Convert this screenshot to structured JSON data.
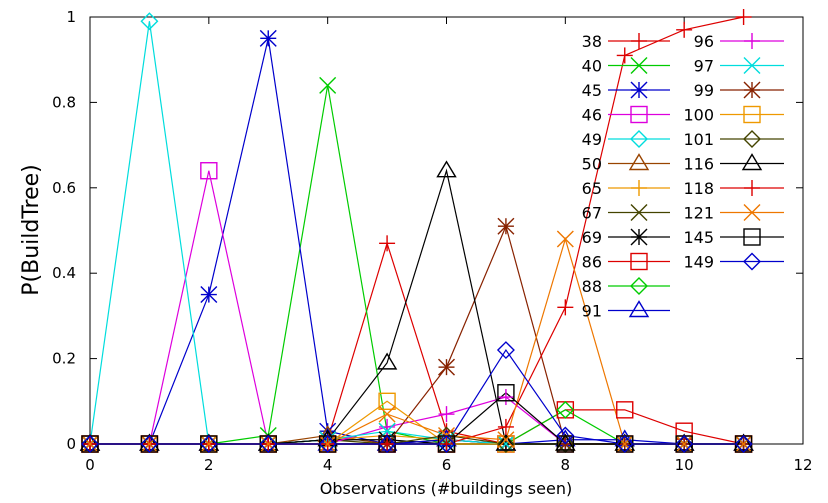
{
  "chart_data": {
    "type": "line",
    "title": "",
    "xlabel": "Observations (#buildings seen)",
    "ylabel": "P(BuildTree)",
    "xlim": [
      0,
      12
    ],
    "ylim": [
      0,
      1
    ],
    "xticks": [
      "0",
      "2",
      "4",
      "6",
      "8",
      "10",
      "12"
    ],
    "yticks": [
      "0",
      "0.2",
      "0.4",
      "0.6",
      "0.8",
      "1"
    ],
    "grid": false,
    "legend_position": "top-right",
    "series": [
      {
        "name": "38",
        "color": "#dd0000",
        "marker": "plus",
        "x": [
          0,
          1,
          2,
          3,
          4,
          5,
          6,
          7,
          8,
          9,
          10,
          11
        ],
        "y": [
          0,
          0,
          0,
          0,
          0.01,
          0.47,
          0.03,
          0,
          0,
          0,
          0,
          0
        ]
      },
      {
        "name": "40",
        "color": "#00cc00",
        "marker": "x",
        "x": [
          0,
          1,
          2,
          3,
          4,
          5,
          6,
          7,
          8,
          9,
          10,
          11
        ],
        "y": [
          0,
          0,
          0,
          0.02,
          0.84,
          0.03,
          0,
          0,
          0,
          0,
          0,
          0
        ]
      },
      {
        "name": "45",
        "color": "#0000cc",
        "marker": "star",
        "x": [
          0,
          1,
          2,
          3,
          4,
          5,
          6,
          7,
          8,
          9,
          10,
          11
        ],
        "y": [
          0,
          0,
          0.35,
          0.95,
          0.03,
          0,
          0,
          0,
          0,
          0,
          0,
          0
        ]
      },
      {
        "name": "46",
        "color": "#dd00dd",
        "marker": "square",
        "x": [
          0,
          1,
          2,
          3,
          4,
          5,
          6,
          7,
          8,
          9,
          10,
          11
        ],
        "y": [
          0,
          0,
          0.64,
          0,
          0,
          0,
          0,
          0,
          0,
          0,
          0,
          0
        ]
      },
      {
        "name": "49",
        "color": "#00dddd",
        "marker": "diamond",
        "x": [
          0,
          1,
          2,
          3,
          4,
          5,
          6,
          7,
          8,
          9,
          10,
          11
        ],
        "y": [
          0,
          0.99,
          0,
          0,
          0,
          0,
          0,
          0,
          0,
          0,
          0,
          0
        ]
      },
      {
        "name": "50",
        "color": "#994400",
        "marker": "triangle",
        "x": [
          0,
          1,
          2,
          3,
          4,
          5,
          6,
          7,
          8,
          9,
          10,
          11
        ],
        "y": [
          0,
          0,
          0,
          0,
          0.02,
          0,
          0.01,
          0,
          0,
          0,
          0,
          0
        ]
      },
      {
        "name": "65",
        "color": "#ee9900",
        "marker": "plus",
        "x": [
          0,
          1,
          2,
          3,
          4,
          5,
          6,
          7,
          8,
          9,
          10,
          11
        ],
        "y": [
          0,
          0,
          0,
          0,
          0.01,
          0.02,
          0.01,
          0,
          0,
          0,
          0,
          0
        ]
      },
      {
        "name": "67",
        "color": "#444400",
        "marker": "x",
        "x": [
          0,
          1,
          2,
          3,
          4,
          5,
          6,
          7,
          8,
          9,
          10,
          11
        ],
        "y": [
          0,
          0,
          0,
          0,
          0.01,
          0,
          0,
          0,
          0,
          0,
          0,
          0
        ]
      },
      {
        "name": "69",
        "color": "#000000",
        "marker": "star",
        "x": [
          0,
          1,
          2,
          3,
          4,
          5,
          6,
          7,
          8,
          9,
          10,
          11
        ],
        "y": [
          0,
          0,
          0,
          0,
          0.01,
          0.01,
          0,
          0,
          0,
          0,
          0,
          0
        ]
      },
      {
        "name": "86",
        "color": "#dd0000",
        "marker": "square",
        "x": [
          0,
          1,
          2,
          3,
          4,
          5,
          6,
          7,
          8,
          9,
          10,
          11
        ],
        "y": [
          0,
          0,
          0,
          0,
          0,
          0,
          0,
          0,
          0.08,
          0.08,
          0.03,
          0
        ]
      },
      {
        "name": "88",
        "color": "#00cc00",
        "marker": "diamond",
        "x": [
          0,
          1,
          2,
          3,
          4,
          5,
          6,
          7,
          8,
          9,
          10,
          11
        ],
        "y": [
          0,
          0,
          0,
          0,
          0,
          0,
          0,
          0,
          0.08,
          0,
          0,
          0
        ]
      },
      {
        "name": "91",
        "color": "#0000cc",
        "marker": "triangle",
        "x": [
          0,
          1,
          2,
          3,
          4,
          5,
          6,
          7,
          8,
          9,
          10,
          11
        ],
        "y": [
          0,
          0,
          0,
          0,
          0,
          0,
          0.01,
          0,
          0.01,
          0.01,
          0,
          0
        ]
      },
      {
        "name": "96",
        "color": "#dd00dd",
        "marker": "plus",
        "x": [
          0,
          1,
          2,
          3,
          4,
          5,
          6,
          7,
          8,
          9,
          10,
          11
        ],
        "y": [
          0,
          0,
          0,
          0,
          0,
          0.04,
          0.07,
          0.11,
          0,
          0,
          0,
          0
        ]
      },
      {
        "name": "97",
        "color": "#00dddd",
        "marker": "x",
        "x": [
          0,
          1,
          2,
          3,
          4,
          5,
          6,
          7,
          8,
          9,
          10,
          11
        ],
        "y": [
          0,
          0,
          0,
          0,
          0.01,
          0.03,
          0.01,
          0,
          0,
          0,
          0,
          0
        ]
      },
      {
        "name": "99",
        "color": "#882200",
        "marker": "star",
        "x": [
          0,
          1,
          2,
          3,
          4,
          5,
          6,
          7,
          8,
          9,
          10,
          11
        ],
        "y": [
          0,
          0,
          0,
          0,
          0,
          0,
          0.18,
          0.51,
          0,
          0,
          0,
          0
        ]
      },
      {
        "name": "100",
        "color": "#ee9900",
        "marker": "square",
        "x": [
          0,
          1,
          2,
          3,
          4,
          5,
          6,
          7,
          8,
          9,
          10,
          11
        ],
        "y": [
          0,
          0,
          0,
          0,
          0,
          0.1,
          0,
          0,
          0,
          0,
          0,
          0
        ]
      },
      {
        "name": "101",
        "color": "#444400",
        "marker": "diamond",
        "x": [
          0,
          1,
          2,
          3,
          4,
          5,
          6,
          7,
          8,
          9,
          10,
          11
        ],
        "y": [
          0,
          0,
          0,
          0,
          0,
          0,
          0.02,
          0,
          0,
          0,
          0,
          0
        ]
      },
      {
        "name": "116",
        "color": "#000000",
        "marker": "triangle",
        "x": [
          0,
          1,
          2,
          3,
          4,
          5,
          6,
          7,
          8,
          9,
          10,
          11
        ],
        "y": [
          0,
          0,
          0,
          0,
          0.01,
          0.19,
          0.64,
          0,
          0,
          0,
          0,
          0
        ]
      },
      {
        "name": "118",
        "color": "#dd0000",
        "marker": "plus",
        "x": [
          0,
          1,
          2,
          3,
          4,
          5,
          6,
          7,
          8,
          9,
          10,
          11
        ],
        "y": [
          0,
          0,
          0,
          0,
          0,
          0,
          0,
          0.04,
          0.32,
          0.91,
          0.97,
          1.0
        ]
      },
      {
        "name": "121",
        "color": "#ee7700",
        "marker": "x",
        "x": [
          0,
          1,
          2,
          3,
          4,
          5,
          6,
          7,
          8,
          9,
          10,
          11
        ],
        "y": [
          0,
          0,
          0,
          0,
          0,
          0.07,
          0.02,
          0.01,
          0.48,
          0,
          0,
          0
        ]
      },
      {
        "name": "145",
        "color": "#000000",
        "marker": "square",
        "x": [
          0,
          1,
          2,
          3,
          4,
          5,
          6,
          7,
          8,
          9,
          10,
          11
        ],
        "y": [
          0,
          0,
          0,
          0,
          0,
          0,
          0,
          0.12,
          0,
          0,
          0,
          0
        ]
      },
      {
        "name": "149",
        "color": "#0000cc",
        "marker": "diamond",
        "x": [
          0,
          1,
          2,
          3,
          4,
          5,
          6,
          7,
          8,
          9,
          10,
          11
        ],
        "y": [
          0,
          0,
          0,
          0,
          0,
          0,
          0,
          0.22,
          0.02,
          0,
          0,
          0
        ]
      }
    ]
  }
}
